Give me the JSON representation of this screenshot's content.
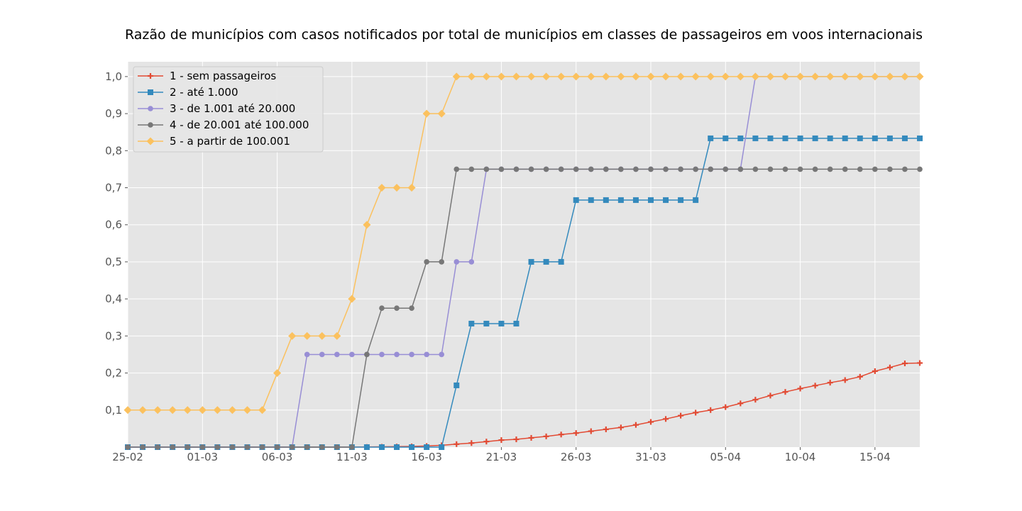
{
  "chart_data": {
    "type": "line",
    "title": "Razão de municípios com casos notificados por total de municípios em classes de passageiros em voos internacionais",
    "xlabel": "",
    "ylabel": "",
    "x": [
      "25-02",
      "26-02",
      "27-02",
      "28-02",
      "29-02",
      "01-03",
      "02-03",
      "03-03",
      "04-03",
      "05-03",
      "06-03",
      "07-03",
      "08-03",
      "09-03",
      "10-03",
      "11-03",
      "12-03",
      "13-03",
      "14-03",
      "15-03",
      "16-03",
      "17-03",
      "18-03",
      "19-03",
      "20-03",
      "21-03",
      "22-03",
      "23-03",
      "24-03",
      "25-03",
      "26-03",
      "27-03",
      "28-03",
      "29-03",
      "30-03",
      "31-03",
      "01-04",
      "02-04",
      "03-04",
      "04-04",
      "05-04",
      "06-04",
      "07-04",
      "08-04",
      "09-04",
      "10-04",
      "11-04",
      "12-04",
      "13-04",
      "14-04",
      "15-04",
      "16-04",
      "17-04",
      "18-04"
    ],
    "x_tick_labels": [
      "25-02",
      "01-03",
      "06-03",
      "11-03",
      "16-03",
      "21-03",
      "26-03",
      "31-03",
      "05-04",
      "10-04",
      "15-04"
    ],
    "y_ticks": [
      "0,1",
      "0,2",
      "0,3",
      "0,4",
      "0,5",
      "0,6",
      "0,7",
      "0,8",
      "0,9",
      "1,0"
    ],
    "ylim": [
      0,
      1.04
    ],
    "grid": true,
    "legend_position": "top-left",
    "background": "#e5e5e5",
    "series": [
      {
        "name": "1 - sem passageiros",
        "color": "#e24a33",
        "marker": "plus",
        "values": [
          0,
          0,
          0,
          0,
          0,
          0,
          0,
          0,
          0,
          0,
          0,
          0,
          0,
          0,
          0,
          0,
          0.0005,
          0.001,
          0.0015,
          0.002,
          0.003,
          0.005,
          0.008,
          0.011,
          0.015,
          0.019,
          0.021,
          0.025,
          0.029,
          0.034,
          0.038,
          0.043,
          0.048,
          0.053,
          0.06,
          0.068,
          0.076,
          0.085,
          0.093,
          0.1,
          0.108,
          0.118,
          0.128,
          0.139,
          0.149,
          0.158,
          0.166,
          0.174,
          0.181,
          0.19,
          0.205,
          0.215,
          0.226,
          0.227
        ]
      },
      {
        "name": "2 - até 1.000",
        "color": "#348abd",
        "marker": "square",
        "values": [
          0,
          0,
          0,
          0,
          0,
          0,
          0,
          0,
          0,
          0,
          0,
          0,
          0,
          0,
          0,
          0,
          0,
          0,
          0,
          0,
          0,
          0,
          0.1667,
          0.3333,
          0.3333,
          0.3333,
          0.3333,
          0.5,
          0.5,
          0.5,
          0.6667,
          0.6667,
          0.6667,
          0.6667,
          0.6667,
          0.6667,
          0.6667,
          0.6667,
          0.6667,
          0.8333,
          0.8333,
          0.8333,
          0.8333,
          0.8333,
          0.8333,
          0.8333,
          0.8333,
          0.8333,
          0.8333,
          0.8333,
          0.8333,
          0.8333,
          0.8333,
          0.8333
        ]
      },
      {
        "name": "3 - de 1.001 até 20.000",
        "color": "#988ed5",
        "marker": "circle",
        "values": [
          0,
          0,
          0,
          0,
          0,
          0,
          0,
          0,
          0,
          0,
          0,
          0,
          0.25,
          0.25,
          0.25,
          0.25,
          0.25,
          0.25,
          0.25,
          0.25,
          0.25,
          0.25,
          0.5,
          0.5,
          0.75,
          0.75,
          0.75,
          0.75,
          0.75,
          0.75,
          0.75,
          0.75,
          0.75,
          0.75,
          0.75,
          0.75,
          0.75,
          0.75,
          0.75,
          0.75,
          0.75,
          0.75,
          1,
          1,
          1,
          1,
          1,
          1,
          1,
          1,
          1,
          1,
          1,
          1
        ]
      },
      {
        "name": "4 - de 20.001 até 100.000",
        "color": "#777777",
        "marker": "circle",
        "values": [
          0,
          0,
          0,
          0,
          0,
          0,
          0,
          0,
          0,
          0,
          0,
          0,
          0,
          0,
          0,
          0,
          0.25,
          0.375,
          0.375,
          0.375,
          0.5,
          0.5,
          0.75,
          0.75,
          0.75,
          0.75,
          0.75,
          0.75,
          0.75,
          0.75,
          0.75,
          0.75,
          0.75,
          0.75,
          0.75,
          0.75,
          0.75,
          0.75,
          0.75,
          0.75,
          0.75,
          0.75,
          0.75,
          0.75,
          0.75,
          0.75,
          0.75,
          0.75,
          0.75,
          0.75,
          0.75,
          0.75,
          0.75,
          0.75
        ]
      },
      {
        "name": "5 - a partir de 100.001",
        "color": "#fbc15e",
        "marker": "diamond",
        "values": [
          0.1,
          0.1,
          0.1,
          0.1,
          0.1,
          0.1,
          0.1,
          0.1,
          0.1,
          0.1,
          0.2,
          0.3,
          0.3,
          0.3,
          0.3,
          0.4,
          0.6,
          0.7,
          0.7,
          0.7,
          0.9,
          0.9,
          1,
          1,
          1,
          1,
          1,
          1,
          1,
          1,
          1,
          1,
          1,
          1,
          1,
          1,
          1,
          1,
          1,
          1,
          1,
          1,
          1,
          1,
          1,
          1,
          1,
          1,
          1,
          1,
          1,
          1,
          1,
          1
        ]
      }
    ]
  }
}
